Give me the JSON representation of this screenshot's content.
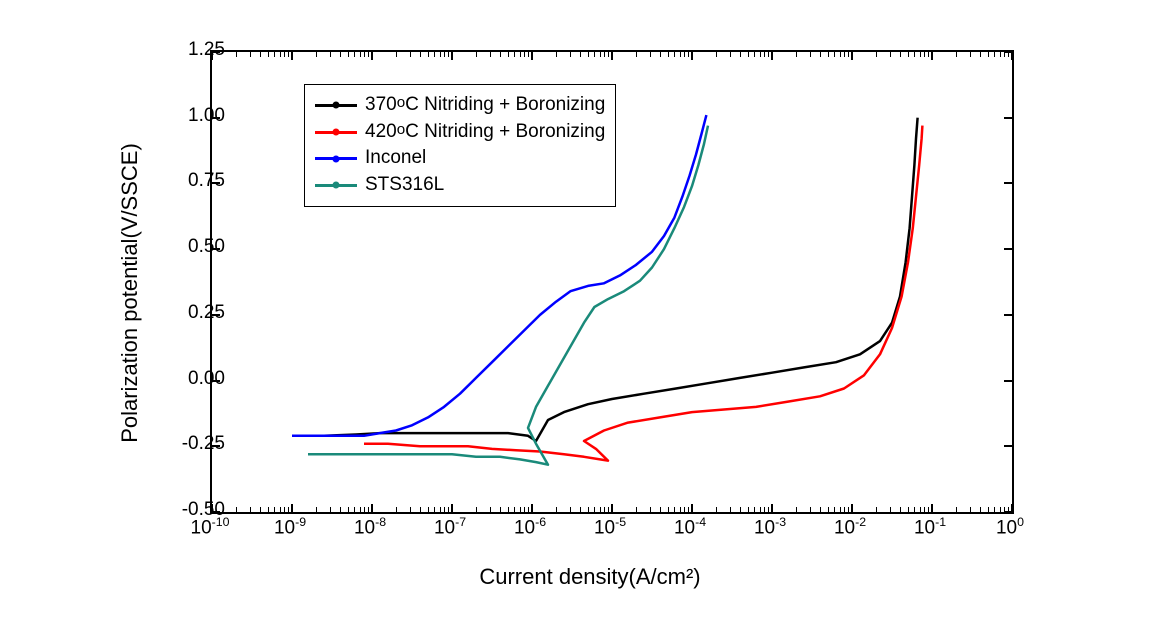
{
  "chart": {
    "type": "line",
    "background_color": "#ffffff",
    "x_axis": {
      "label": "Current density(A/cm²)",
      "scale": "log",
      "min_exp": -10,
      "max_exp": 0,
      "ticks": [
        -10,
        -9,
        -8,
        -7,
        -6,
        -5,
        -4,
        -3,
        -2,
        -1,
        0
      ],
      "label_fontsize": 22,
      "tick_fontsize": 19
    },
    "y_axis": {
      "label": "Polarization potential(V/SSCE)",
      "scale": "linear",
      "min": -0.5,
      "max": 1.25,
      "ticks": [
        -0.5,
        -0.25,
        0.0,
        0.25,
        0.5,
        0.75,
        1.0,
        1.25
      ],
      "label_fontsize": 22,
      "tick_fontsize": 19
    },
    "series": [
      {
        "name": "370°C Nitriding + Boronizing",
        "color": "#000000",
        "line_width": 2.5,
        "marker": "square",
        "data": [
          [
            -8.6,
            -0.21
          ],
          [
            -8.2,
            -0.205
          ],
          [
            -7.9,
            -0.2
          ],
          [
            -7.5,
            -0.2
          ],
          [
            -7.2,
            -0.2
          ],
          [
            -6.9,
            -0.2
          ],
          [
            -6.6,
            -0.2
          ],
          [
            -6.3,
            -0.2
          ],
          [
            -6.05,
            -0.21
          ],
          [
            -5.95,
            -0.23
          ],
          [
            -5.8,
            -0.15
          ],
          [
            -5.6,
            -0.12
          ],
          [
            -5.3,
            -0.09
          ],
          [
            -5.0,
            -0.07
          ],
          [
            -4.6,
            -0.05
          ],
          [
            -4.2,
            -0.03
          ],
          [
            -3.8,
            -0.01
          ],
          [
            -3.4,
            0.01
          ],
          [
            -3.0,
            0.03
          ],
          [
            -2.6,
            0.05
          ],
          [
            -2.2,
            0.07
          ],
          [
            -1.9,
            0.1
          ],
          [
            -1.65,
            0.15
          ],
          [
            -1.5,
            0.22
          ],
          [
            -1.4,
            0.32
          ],
          [
            -1.33,
            0.45
          ],
          [
            -1.28,
            0.58
          ],
          [
            -1.25,
            0.7
          ],
          [
            -1.22,
            0.82
          ],
          [
            -1.2,
            0.92
          ],
          [
            -1.18,
            1.0
          ]
        ]
      },
      {
        "name": "420°C Nitriding + Boronizing",
        "color": "#ff0000",
        "line_width": 2.5,
        "marker": "circle",
        "data": [
          [
            -8.1,
            -0.24
          ],
          [
            -7.8,
            -0.24
          ],
          [
            -7.4,
            -0.25
          ],
          [
            -7.1,
            -0.25
          ],
          [
            -6.8,
            -0.25
          ],
          [
            -6.5,
            -0.26
          ],
          [
            -6.2,
            -0.265
          ],
          [
            -5.9,
            -0.27
          ],
          [
            -5.6,
            -0.28
          ],
          [
            -5.35,
            -0.29
          ],
          [
            -5.15,
            -0.3
          ],
          [
            -5.05,
            -0.305
          ],
          [
            -5.2,
            -0.26
          ],
          [
            -5.35,
            -0.23
          ],
          [
            -5.1,
            -0.19
          ],
          [
            -4.8,
            -0.16
          ],
          [
            -4.4,
            -0.14
          ],
          [
            -4.0,
            -0.12
          ],
          [
            -3.6,
            -0.11
          ],
          [
            -3.2,
            -0.1
          ],
          [
            -2.8,
            -0.08
          ],
          [
            -2.4,
            -0.06
          ],
          [
            -2.1,
            -0.03
          ],
          [
            -1.85,
            0.02
          ],
          [
            -1.65,
            0.1
          ],
          [
            -1.5,
            0.2
          ],
          [
            -1.38,
            0.32
          ],
          [
            -1.3,
            0.45
          ],
          [
            -1.24,
            0.58
          ],
          [
            -1.2,
            0.7
          ],
          [
            -1.16,
            0.82
          ],
          [
            -1.13,
            0.92
          ],
          [
            -1.12,
            0.97
          ]
        ]
      },
      {
        "name": "Inconel",
        "color": "#0000ff",
        "line_width": 2.5,
        "marker": "triangle",
        "data": [
          [
            -9.0,
            -0.21
          ],
          [
            -8.7,
            -0.21
          ],
          [
            -8.4,
            -0.21
          ],
          [
            -8.1,
            -0.21
          ],
          [
            -7.9,
            -0.2
          ],
          [
            -7.7,
            -0.19
          ],
          [
            -7.5,
            -0.17
          ],
          [
            -7.3,
            -0.14
          ],
          [
            -7.1,
            -0.1
          ],
          [
            -6.9,
            -0.05
          ],
          [
            -6.7,
            0.01
          ],
          [
            -6.5,
            0.07
          ],
          [
            -6.3,
            0.13
          ],
          [
            -6.1,
            0.19
          ],
          [
            -5.9,
            0.25
          ],
          [
            -5.7,
            0.3
          ],
          [
            -5.52,
            0.34
          ],
          [
            -5.3,
            0.36
          ],
          [
            -5.1,
            0.37
          ],
          [
            -4.9,
            0.4
          ],
          [
            -4.7,
            0.44
          ],
          [
            -4.5,
            0.49
          ],
          [
            -4.35,
            0.55
          ],
          [
            -4.22,
            0.62
          ],
          [
            -4.12,
            0.7
          ],
          [
            -4.03,
            0.78
          ],
          [
            -3.95,
            0.86
          ],
          [
            -3.88,
            0.94
          ],
          [
            -3.82,
            1.01
          ]
        ]
      },
      {
        "name": "STS316L",
        "color": "#1a8a7a",
        "line_width": 2.5,
        "marker": "diamond",
        "data": [
          [
            -8.8,
            -0.28
          ],
          [
            -8.5,
            -0.28
          ],
          [
            -8.2,
            -0.28
          ],
          [
            -7.9,
            -0.28
          ],
          [
            -7.6,
            -0.28
          ],
          [
            -7.3,
            -0.28
          ],
          [
            -7.0,
            -0.28
          ],
          [
            -6.7,
            -0.29
          ],
          [
            -6.4,
            -0.29
          ],
          [
            -6.15,
            -0.3
          ],
          [
            -5.95,
            -0.31
          ],
          [
            -5.8,
            -0.32
          ],
          [
            -5.95,
            -0.24
          ],
          [
            -6.05,
            -0.18
          ],
          [
            -5.95,
            -0.1
          ],
          [
            -5.8,
            -0.02
          ],
          [
            -5.65,
            0.06
          ],
          [
            -5.5,
            0.14
          ],
          [
            -5.35,
            0.22
          ],
          [
            -5.22,
            0.28
          ],
          [
            -5.05,
            0.31
          ],
          [
            -4.85,
            0.34
          ],
          [
            -4.65,
            0.38
          ],
          [
            -4.5,
            0.43
          ],
          [
            -4.35,
            0.5
          ],
          [
            -4.22,
            0.58
          ],
          [
            -4.1,
            0.66
          ],
          [
            -4.0,
            0.74
          ],
          [
            -3.92,
            0.82
          ],
          [
            -3.85,
            0.9
          ],
          [
            -3.8,
            0.97
          ]
        ]
      }
    ],
    "legend": {
      "position": "top-left",
      "fontsize": 19,
      "border_color": "#000000",
      "bg_color": "#ffffff",
      "items": [
        {
          "label": "370°C Nitriding + Boronizing",
          "color": "#000000"
        },
        {
          "label": "420°C Nitriding + Boronizing",
          "color": "#ff0000"
        },
        {
          "label": "Inconel",
          "color": "#0000ff"
        },
        {
          "label": "STS316L",
          "color": "#1a8a7a"
        }
      ]
    }
  }
}
